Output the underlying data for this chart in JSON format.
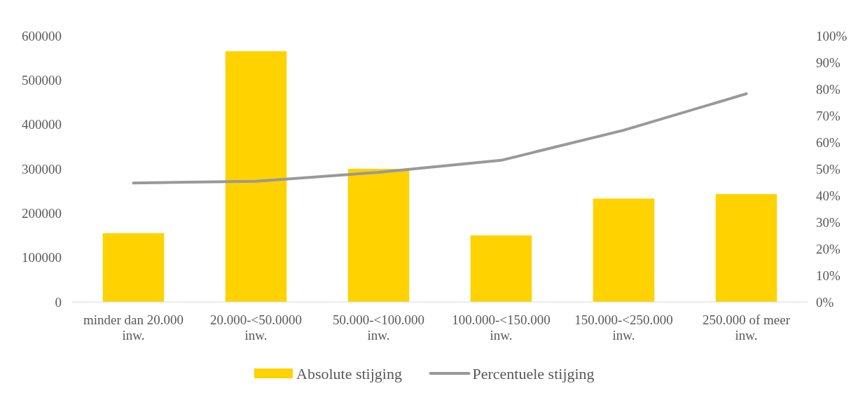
{
  "chart_data": {
    "type": "bar",
    "categories": [
      "minder dan 20.000 inw.",
      "20.000-<50.0000 inw.",
      "50.000-<100.000 inw.",
      "100.000-<150.000 inw.",
      "150.000-<250.000 inw.",
      "250.000 of meer inw."
    ],
    "series": [
      {
        "name": "Absolute stijging",
        "color": "#ffd200",
        "values": [
          155000,
          565000,
          300000,
          150000,
          233000,
          243000
        ]
      },
      {
        "name": "Percentuele stijging",
        "type": "line",
        "axis": "y2",
        "color": "#999999",
        "values": [
          44.7,
          45.3,
          48.7,
          53.2,
          64.5,
          78.2
        ]
      }
    ],
    "ylim": [
      0,
      600000
    ],
    "yticks": [
      0,
      100000,
      200000,
      300000,
      400000,
      500000,
      600000
    ],
    "y2lim": [
      0,
      100
    ],
    "y2ticks": [
      {
        "value": 0,
        "label": "0%"
      },
      {
        "value": 10,
        "label": "10%"
      },
      {
        "value": 20,
        "label": "20%"
      },
      {
        "value": 30,
        "label": "30%"
      },
      {
        "value": 40,
        "label": "40%"
      },
      {
        "value": 50,
        "label": "50%"
      },
      {
        "value": 60,
        "label": "60%"
      },
      {
        "value": 70,
        "label": "70%"
      },
      {
        "value": 80,
        "label": "80%"
      },
      {
        "value": 90,
        "label": "90%"
      },
      {
        "value": 100,
        "label": "100%"
      }
    ],
    "legend": "bottom"
  }
}
